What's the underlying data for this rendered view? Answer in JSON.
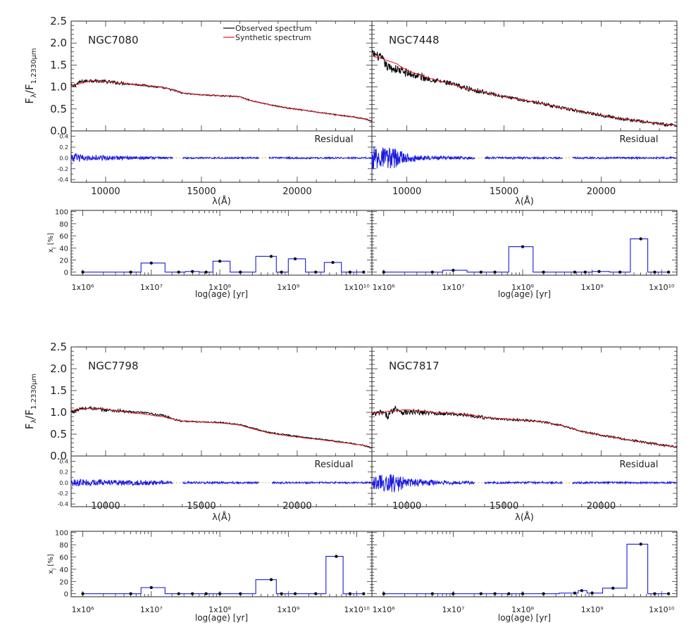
{
  "figure": {
    "ylabel_flux": "F",
    "ylabel_flux_sub1": "λ",
    "ylabel_flux_mid": "/F",
    "ylabel_flux_sub2": "1.2330μm",
    "xlabel_wave": "λ(Å)",
    "ylabel_frac": "x",
    "ylabel_frac_sub": "j",
    "ylabel_frac_unit": "[%]",
    "xlabel_age": "log(age) [yr]",
    "residual_label": "Residual",
    "legend": [
      {
        "label": "Observed spectrum",
        "color": "#000000"
      },
      {
        "label": "Synthetic spectrum",
        "color": "#e8141c"
      }
    ],
    "residual_color": "#1a1ae0",
    "sfh_color": "#1a1ae0"
  },
  "chart_data": [
    {
      "type": "line",
      "galaxy": "NGC7080",
      "xlim": [
        8200,
        23900
      ],
      "flux_ylim": [
        0.0,
        2.5
      ],
      "flux_yticks": [
        "0.0",
        "0.5",
        "1.0",
        "1.5",
        "2.0",
        "2.5"
      ],
      "residual_ylim": [
        -0.45,
        0.5
      ],
      "residual_yticks": [
        "-0.4",
        "-0.2",
        "0.0",
        "0.2",
        "0.4"
      ],
      "wave_xticks": [
        "10000",
        "15000",
        "20000"
      ],
      "observed_knots": [
        [
          8300,
          1.02
        ],
        [
          8700,
          1.12
        ],
        [
          9200,
          1.15
        ],
        [
          9800,
          1.13
        ],
        [
          10500,
          1.1
        ],
        [
          11000,
          1.08
        ],
        [
          12000,
          1.04
        ],
        [
          13000,
          0.98
        ],
        [
          13600,
          0.92
        ],
        [
          14000,
          0.86
        ],
        [
          15000,
          0.82
        ],
        [
          16000,
          0.8
        ],
        [
          17000,
          0.78
        ],
        [
          17500,
          0.7
        ],
        [
          18500,
          0.6
        ],
        [
          19500,
          0.52
        ],
        [
          20500,
          0.46
        ],
        [
          21500,
          0.4
        ],
        [
          22500,
          0.34
        ],
        [
          23500,
          0.28
        ],
        [
          23900,
          0.22
        ]
      ],
      "observed_noise": 0.04,
      "synthetic_knots": [
        [
          8300,
          1.04
        ],
        [
          9200,
          1.14
        ],
        [
          9800,
          1.13
        ],
        [
          10500,
          1.1
        ],
        [
          11000,
          1.08
        ],
        [
          12000,
          1.04
        ],
        [
          13000,
          0.99
        ],
        [
          13600,
          0.92
        ],
        [
          14000,
          0.86
        ],
        [
          15000,
          0.82
        ],
        [
          16000,
          0.8
        ],
        [
          17000,
          0.78
        ],
        [
          17500,
          0.7
        ],
        [
          18500,
          0.6
        ],
        [
          19500,
          0.52
        ],
        [
          20500,
          0.46
        ],
        [
          21500,
          0.4
        ],
        [
          22500,
          0.34
        ],
        [
          23500,
          0.28
        ],
        [
          23900,
          0.22
        ]
      ],
      "residual_amp_knots": [
        [
          8300,
          0.09
        ],
        [
          9000,
          0.05
        ],
        [
          12000,
          0.03
        ],
        [
          14000,
          0.015
        ],
        [
          23900,
          0.015
        ]
      ],
      "gaps": [
        [
          13500,
          14000
        ],
        [
          18000,
          18500
        ]
      ],
      "age_xticks": [
        "1x10⁶",
        "1x10⁷",
        "1x10⁸",
        "1x10⁹",
        "1x10¹⁰"
      ],
      "frac_ylim": [
        -5,
        102
      ],
      "frac_yticks": [
        "0",
        "20",
        "40",
        "60",
        "80",
        "100"
      ],
      "sfh_log_ages": [
        6.0,
        6.7,
        7.0,
        7.4,
        7.6,
        7.8,
        8.0,
        8.3,
        8.75,
        8.9,
        9.1,
        9.4,
        9.65,
        9.9,
        10.1
      ],
      "sfh_values": [
        0,
        0,
        15,
        0,
        1,
        0,
        18,
        0,
        26,
        0,
        22,
        0,
        16,
        0,
        0
      ]
    },
    {
      "type": "line",
      "galaxy": "NGC7448",
      "xlim": [
        8200,
        23900
      ],
      "flux_ylim": [
        0.0,
        2.5
      ],
      "flux_yticks": [
        "0.0",
        "0.5",
        "1.0",
        "1.5",
        "2.0",
        "2.5"
      ],
      "residual_ylim": [
        -0.45,
        0.5
      ],
      "residual_yticks": [
        "-0.4",
        "-0.2",
        "0.0",
        "0.2",
        "0.4"
      ],
      "wave_xticks": [
        "10000",
        "15000",
        "20000"
      ],
      "observed_knots": [
        [
          8300,
          1.75
        ],
        [
          8700,
          1.65
        ],
        [
          9000,
          1.45
        ],
        [
          9500,
          1.4
        ],
        [
          10000,
          1.32
        ],
        [
          11000,
          1.2
        ],
        [
          12000,
          1.1
        ],
        [
          13000,
          0.98
        ],
        [
          14000,
          0.88
        ],
        [
          15000,
          0.78
        ],
        [
          16000,
          0.7
        ],
        [
          17000,
          0.62
        ],
        [
          18000,
          0.52
        ],
        [
          19000,
          0.44
        ],
        [
          20000,
          0.36
        ],
        [
          21000,
          0.28
        ],
        [
          22000,
          0.22
        ],
        [
          23000,
          0.16
        ],
        [
          23900,
          0.12
        ]
      ],
      "observed_noise": 0.1,
      "synthetic_knots": [
        [
          8300,
          1.7
        ],
        [
          9000,
          1.6
        ],
        [
          9500,
          1.52
        ],
        [
          10000,
          1.38
        ],
        [
          11000,
          1.22
        ],
        [
          12000,
          1.1
        ],
        [
          13000,
          0.98
        ],
        [
          14000,
          0.88
        ],
        [
          15000,
          0.78
        ],
        [
          16000,
          0.7
        ],
        [
          17000,
          0.62
        ],
        [
          18000,
          0.52
        ],
        [
          19000,
          0.44
        ],
        [
          20000,
          0.36
        ],
        [
          21000,
          0.28
        ],
        [
          22000,
          0.22
        ],
        [
          23000,
          0.16
        ],
        [
          23900,
          0.12
        ]
      ],
      "residual_amp_knots": [
        [
          8300,
          0.22
        ],
        [
          9300,
          0.2
        ],
        [
          10000,
          0.08
        ],
        [
          11000,
          0.04
        ],
        [
          14000,
          0.02
        ],
        [
          23900,
          0.015
        ]
      ],
      "gaps": [
        [
          13500,
          14000
        ],
        [
          18000,
          18500
        ]
      ],
      "age_xticks": [
        "1x10⁶",
        "1x10⁷",
        "1x10⁸",
        "1x10⁹",
        "1x10¹⁰"
      ],
      "frac_ylim": [
        -5,
        102
      ],
      "frac_yticks": [
        "0",
        "20",
        "40",
        "60",
        "80",
        "100"
      ],
      "sfh_log_ages": [
        6.0,
        6.7,
        7.0,
        7.4,
        7.6,
        8.0,
        8.3,
        8.75,
        8.9,
        9.1,
        9.4,
        9.7,
        9.9,
        10.1
      ],
      "sfh_values": [
        0,
        0,
        3,
        0,
        0,
        42,
        0,
        0,
        0,
        1,
        0,
        55,
        0,
        0
      ]
    },
    {
      "type": "line",
      "galaxy": "NGC7798",
      "xlim": [
        8200,
        23900
      ],
      "flux_ylim": [
        0.0,
        2.5
      ],
      "flux_yticks": [
        "0.0",
        "0.5",
        "1.0",
        "1.5",
        "2.0",
        "2.5"
      ],
      "residual_ylim": [
        -0.45,
        0.5
      ],
      "residual_yticks": [
        "-0.4",
        "-0.2",
        "0.0",
        "0.2",
        "0.4"
      ],
      "wave_xticks": [
        "10000",
        "15000",
        "20000"
      ],
      "observed_knots": [
        [
          8300,
          1.02
        ],
        [
          8700,
          1.08
        ],
        [
          9200,
          1.1
        ],
        [
          9800,
          1.06
        ],
        [
          10500,
          1.04
        ],
        [
          11000,
          1.02
        ],
        [
          12000,
          0.99
        ],
        [
          13000,
          0.93
        ],
        [
          13600,
          0.84
        ],
        [
          14000,
          0.8
        ],
        [
          15000,
          0.78
        ],
        [
          16000,
          0.77
        ],
        [
          17000,
          0.72
        ],
        [
          17500,
          0.66
        ],
        [
          18500,
          0.54
        ],
        [
          19500,
          0.48
        ],
        [
          20500,
          0.42
        ],
        [
          21500,
          0.37
        ],
        [
          22500,
          0.31
        ],
        [
          23500,
          0.24
        ],
        [
          23900,
          0.18
        ]
      ],
      "observed_noise": 0.04,
      "synthetic_knots": [
        [
          8300,
          1.05
        ],
        [
          9200,
          1.1
        ],
        [
          9800,
          1.08
        ],
        [
          10500,
          1.04
        ],
        [
          11000,
          1.01
        ],
        [
          12000,
          0.96
        ],
        [
          13000,
          0.9
        ],
        [
          13600,
          0.84
        ],
        [
          14000,
          0.8
        ],
        [
          15000,
          0.78
        ],
        [
          16000,
          0.76
        ],
        [
          17000,
          0.71
        ],
        [
          17500,
          0.64
        ],
        [
          18500,
          0.53
        ],
        [
          19500,
          0.46
        ],
        [
          20500,
          0.41
        ],
        [
          21500,
          0.36
        ],
        [
          22500,
          0.3
        ],
        [
          23500,
          0.24
        ],
        [
          23900,
          0.18
        ]
      ],
      "residual_amp_knots": [
        [
          8300,
          0.08
        ],
        [
          9000,
          0.06
        ],
        [
          12000,
          0.05
        ],
        [
          14000,
          0.02
        ],
        [
          23900,
          0.015
        ]
      ],
      "gaps": [
        [
          13500,
          14000
        ],
        [
          18000,
          18700
        ]
      ],
      "age_xticks": [
        "1x10⁶",
        "1x10⁷",
        "1x10⁸",
        "1x10⁹",
        "1x10¹⁰"
      ],
      "frac_ylim": [
        -5,
        102
      ],
      "frac_yticks": [
        "0",
        "20",
        "40",
        "60",
        "80",
        "100"
      ],
      "sfh_log_ages": [
        6.0,
        6.7,
        7.0,
        7.4,
        7.6,
        7.8,
        8.0,
        8.3,
        8.75,
        8.9,
        9.1,
        9.4,
        9.7,
        9.9,
        10.1
      ],
      "sfh_values": [
        0,
        0,
        10,
        0,
        0,
        0,
        0,
        0,
        23,
        0,
        0,
        0,
        61,
        0,
        0
      ]
    },
    {
      "type": "line",
      "galaxy": "NGC7817",
      "xlim": [
        8200,
        23900
      ],
      "flux_ylim": [
        0.0,
        2.5
      ],
      "flux_yticks": [
        "0.0",
        "0.5",
        "1.0",
        "1.5",
        "2.0",
        "2.5"
      ],
      "residual_ylim": [
        -0.45,
        0.5
      ],
      "residual_yticks": [
        "-0.4",
        "-0.2",
        "0.0",
        "0.2",
        "0.4"
      ],
      "wave_xticks": [
        "10000",
        "15000",
        "20000"
      ],
      "observed_knots": [
        [
          8300,
          0.95
        ],
        [
          8700,
          1.0
        ],
        [
          9000,
          0.92
        ],
        [
          9400,
          1.1
        ],
        [
          9800,
          1.0
        ],
        [
          10500,
          1.0
        ],
        [
          11500,
          0.98
        ],
        [
          12500,
          0.96
        ],
        [
          13500,
          0.92
        ],
        [
          14000,
          0.88
        ],
        [
          15000,
          0.84
        ],
        [
          16000,
          0.82
        ],
        [
          17000,
          0.78
        ],
        [
          18000,
          0.7
        ],
        [
          19000,
          0.56
        ],
        [
          20000,
          0.48
        ],
        [
          21000,
          0.4
        ],
        [
          22000,
          0.33
        ],
        [
          23000,
          0.26
        ],
        [
          23900,
          0.2
        ]
      ],
      "observed_noise": 0.07,
      "synthetic_knots": [
        [
          8300,
          0.98
        ],
        [
          9000,
          1.02
        ],
        [
          10000,
          1.06
        ],
        [
          10500,
          1.04
        ],
        [
          11500,
          1.0
        ],
        [
          12500,
          0.97
        ],
        [
          13500,
          0.93
        ],
        [
          14000,
          0.89
        ],
        [
          15000,
          0.85
        ],
        [
          16000,
          0.82
        ],
        [
          17000,
          0.78
        ],
        [
          18000,
          0.7
        ],
        [
          19000,
          0.56
        ],
        [
          20000,
          0.48
        ],
        [
          21000,
          0.4
        ],
        [
          22000,
          0.33
        ],
        [
          23000,
          0.26
        ],
        [
          23900,
          0.2
        ]
      ],
      "residual_amp_knots": [
        [
          8300,
          0.12
        ],
        [
          9400,
          0.2
        ],
        [
          10000,
          0.08
        ],
        [
          12000,
          0.04
        ],
        [
          14000,
          0.02
        ],
        [
          23900,
          0.015
        ]
      ],
      "gaps": [
        [
          13500,
          14000
        ],
        [
          18000,
          18500
        ]
      ],
      "age_xticks": [
        "1x10⁶",
        "1x10⁷",
        "1x10⁸",
        "1x10⁹",
        "1x10¹⁰"
      ],
      "frac_ylim": [
        -5,
        102
      ],
      "frac_yticks": [
        "0",
        "20",
        "40",
        "60",
        "80",
        "100"
      ],
      "sfh_log_ages": [
        6.0,
        6.7,
        7.0,
        7.4,
        7.6,
        7.8,
        8.0,
        8.3,
        8.75,
        8.85,
        9.0,
        9.3,
        9.7,
        9.9,
        10.1
      ],
      "sfh_values": [
        0,
        0,
        0,
        0,
        0,
        0,
        0,
        0,
        1,
        5,
        1,
        9,
        81,
        0,
        0
      ]
    }
  ]
}
